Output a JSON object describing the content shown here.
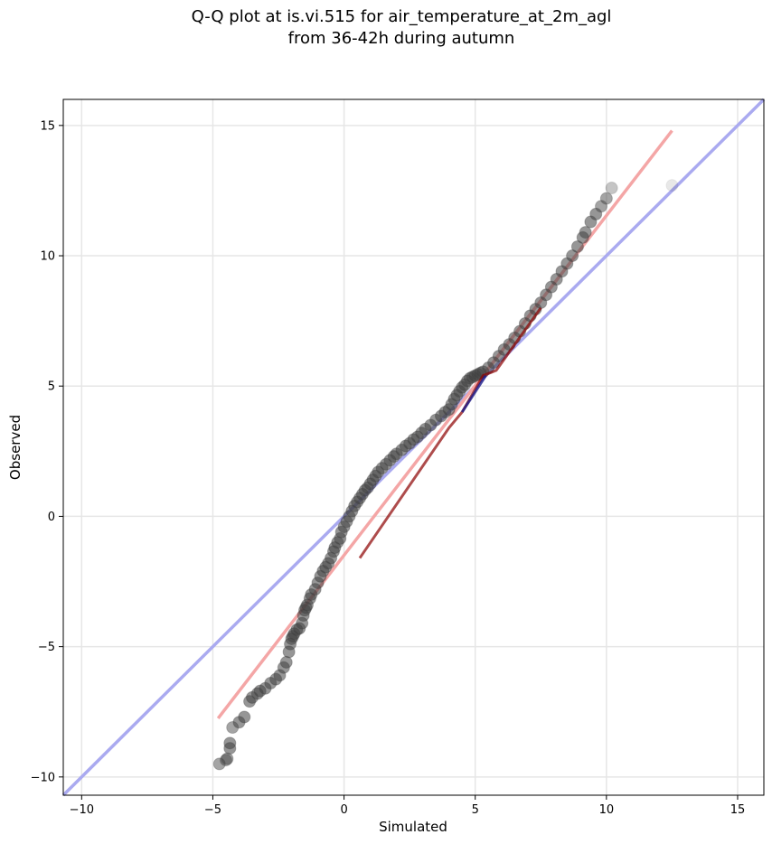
{
  "chart_data": {
    "type": "scatter",
    "title": "Q-Q plot at is.vi.515 for air_temperature_at_2m_agl",
    "subtitle": "from 36-42h during autumn",
    "xlabel": "Simulated",
    "ylabel": "Observed",
    "xlim": [
      -10.7,
      16.0
    ],
    "ylim": [
      -10.7,
      16.0
    ],
    "xticks": [
      -10,
      -5,
      0,
      5,
      10,
      15
    ],
    "yticks": [
      -10,
      -5,
      0,
      5,
      10,
      15
    ],
    "xtick_labels": [
      "−10",
      "−5",
      "0",
      "5",
      "10",
      "15"
    ],
    "ytick_labels": [
      "−10",
      "−5",
      "0",
      "5",
      "10",
      "15"
    ],
    "grid": true,
    "legend": "none",
    "colors": {
      "points": "#404040",
      "fit_line": "#f4a6a6",
      "identity_line": "#aaaaf0",
      "overlay_dark_red": "#8b0000",
      "overlay_dark_blue": "#1a1a8a"
    },
    "identity_line": {
      "x": [
        -10.7,
        16.0
      ],
      "y": [
        -10.7,
        16.0
      ]
    },
    "fit_line": {
      "x": [
        -4.8,
        12.5
      ],
      "y": [
        -7.75,
        14.8
      ]
    },
    "red_overlay": {
      "x": [
        0.6,
        4.0,
        4.5,
        5.3,
        5.8,
        7.5
      ],
      "y": [
        -1.6,
        3.4,
        4.0,
        5.4,
        5.6,
        8.0
      ]
    },
    "blue_overlay": {
      "x": [
        4.5,
        5.4
      ],
      "y": [
        4.0,
        5.4
      ]
    },
    "points": {
      "x": [
        -4.75,
        -4.5,
        -4.45,
        -4.35,
        -4.35,
        -4.25,
        -4.0,
        -3.8,
        -3.6,
        -3.5,
        -3.3,
        -3.2,
        -3.0,
        -2.8,
        -2.6,
        -2.45,
        -2.3,
        -2.2,
        -2.1,
        -2.05,
        -2.0,
        -1.95,
        -1.9,
        -1.8,
        -1.7,
        -1.6,
        -1.55,
        -1.5,
        -1.45,
        -1.4,
        -1.3,
        -1.25,
        -1.1,
        -1.0,
        -0.9,
        -0.8,
        -0.7,
        -0.6,
        -0.5,
        -0.4,
        -0.35,
        -0.25,
        -0.15,
        -0.1,
        0.0,
        0.1,
        0.2,
        0.3,
        0.4,
        0.5,
        0.6,
        0.7,
        0.8,
        0.9,
        1.0,
        1.1,
        1.2,
        1.3,
        1.45,
        1.6,
        1.75,
        1.9,
        2.0,
        2.2,
        2.35,
        2.5,
        2.65,
        2.8,
        2.95,
        3.1,
        3.3,
        3.5,
        3.7,
        3.85,
        4.0,
        4.1,
        4.2,
        4.3,
        4.4,
        4.5,
        4.6,
        4.7,
        4.8,
        4.9,
        5.0,
        5.1,
        5.2,
        5.3,
        5.5,
        5.7,
        5.9,
        6.1,
        6.3,
        6.5,
        6.7,
        6.9,
        7.1,
        7.3,
        7.5,
        7.7,
        7.9,
        8.1,
        8.3,
        8.5,
        8.7,
        8.9,
        9.1,
        9.2,
        9.4,
        9.6,
        9.8,
        10.0,
        10.2,
        12.5
      ],
      "y": [
        -9.5,
        -9.35,
        -9.3,
        -8.9,
        -8.7,
        -8.1,
        -7.9,
        -7.7,
        -7.1,
        -6.95,
        -6.8,
        -6.7,
        -6.6,
        -6.4,
        -6.25,
        -6.1,
        -5.8,
        -5.6,
        -5.2,
        -4.9,
        -4.7,
        -4.6,
        -4.5,
        -4.35,
        -4.3,
        -4.1,
        -3.8,
        -3.6,
        -3.5,
        -3.4,
        -3.15,
        -3.0,
        -2.8,
        -2.55,
        -2.3,
        -2.1,
        -1.95,
        -1.8,
        -1.6,
        -1.35,
        -1.2,
        -1.0,
        -0.85,
        -0.6,
        -0.4,
        -0.2,
        0.0,
        0.2,
        0.4,
        0.55,
        0.7,
        0.85,
        1.0,
        1.1,
        1.25,
        1.4,
        1.55,
        1.7,
        1.85,
        2.0,
        2.15,
        2.3,
        2.4,
        2.55,
        2.7,
        2.8,
        2.95,
        3.05,
        3.2,
        3.35,
        3.5,
        3.7,
        3.85,
        4.0,
        4.1,
        4.3,
        4.5,
        4.65,
        4.8,
        4.95,
        5.05,
        5.2,
        5.3,
        5.35,
        5.4,
        5.45,
        5.5,
        5.55,
        5.7,
        5.9,
        6.15,
        6.4,
        6.6,
        6.85,
        7.1,
        7.4,
        7.7,
        7.95,
        8.2,
        8.5,
        8.8,
        9.1,
        9.4,
        9.7,
        10.0,
        10.35,
        10.7,
        10.9,
        11.3,
        11.6,
        11.9,
        12.2,
        12.6,
        12.7
      ]
    }
  }
}
